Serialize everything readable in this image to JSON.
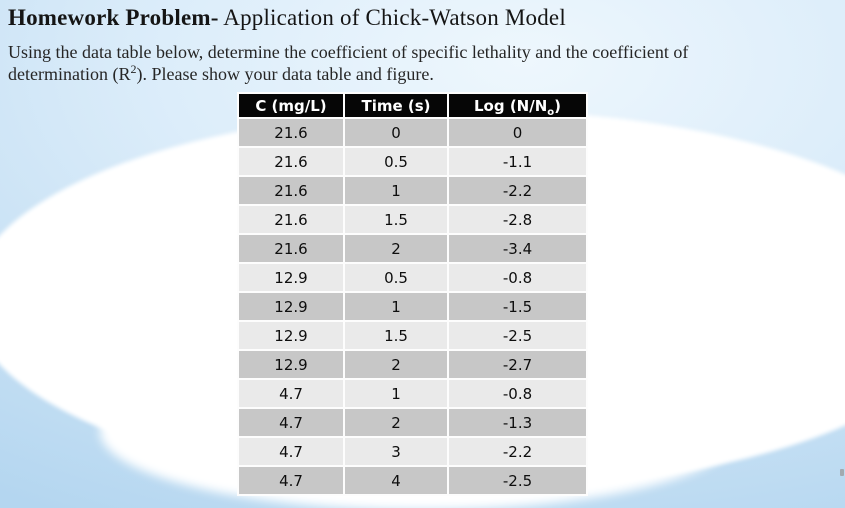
{
  "slide": {
    "title_bold": "Homework Problem-",
    "title_rest": " Application of Chick-Watson Model",
    "body": {
      "line1": "Using the data table below, determine the coefficient of specific lethality and the coefficient of",
      "line2_pre": "determination (R",
      "line2_sup": "2",
      "line2_post": "). Please show your data table and figure."
    }
  },
  "table": {
    "headers": {
      "col1": "C (mg/L)",
      "col2": "Time (s)",
      "col3_pre": "Log (N/N",
      "col3_sub": "o",
      "col3_post": ")"
    },
    "rows": [
      [
        "21.6",
        "0",
        "0"
      ],
      [
        "21.6",
        "0.5",
        "-1.1"
      ],
      [
        "21.6",
        "1",
        "-2.2"
      ],
      [
        "21.6",
        "1.5",
        "-2.8"
      ],
      [
        "21.6",
        "2",
        "-3.4"
      ],
      [
        "12.9",
        "0.5",
        "-0.8"
      ],
      [
        "12.9",
        "1",
        "-1.5"
      ],
      [
        "12.9",
        "1.5",
        "-2.5"
      ],
      [
        "12.9",
        "2",
        "-2.7"
      ],
      [
        "4.7",
        "1",
        "-0.8"
      ],
      [
        "4.7",
        "2",
        "-1.3"
      ],
      [
        "4.7",
        "3",
        "-2.2"
      ],
      [
        "4.7",
        "4",
        "-2.5"
      ]
    ]
  },
  "colors": {
    "table_header_bg": "#060606",
    "table_header_text": "#ffffff",
    "row_dark": "#c7c7c7",
    "row_light": "#eaeaea",
    "slide_blue": "#bfdcf3",
    "text_color": "#151515"
  }
}
